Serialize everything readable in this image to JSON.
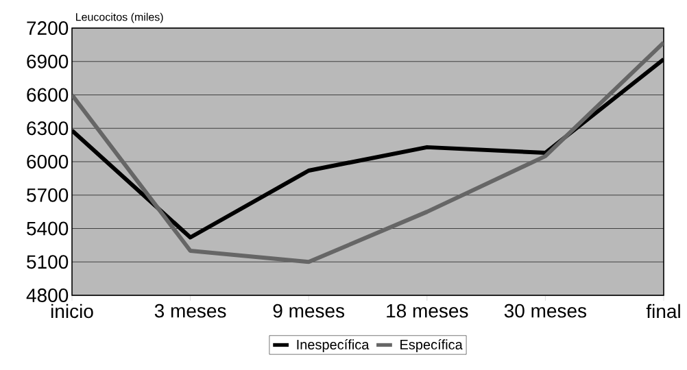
{
  "chart_data": {
    "type": "line",
    "ylabel": "Leucocitos (miles)",
    "categories": [
      "inicio",
      "3 meses",
      "9 meses",
      "18 meses",
      "30 meses",
      "final"
    ],
    "series": [
      {
        "name": "Inespecífica",
        "color": "#000000",
        "values": [
          6280,
          5320,
          5920,
          6130,
          6080,
          6920
        ]
      },
      {
        "name": "Específica",
        "color": "#666666",
        "values": [
          6600,
          5200,
          5100,
          5550,
          6050,
          7070
        ]
      }
    ],
    "ylim": [
      4800,
      7200
    ],
    "yticks": [
      4800,
      5100,
      5400,
      5700,
      6000,
      6300,
      6600,
      6900,
      7200
    ],
    "grid": "y",
    "legend": "bottom",
    "marker": "none",
    "line_style": "solid"
  }
}
